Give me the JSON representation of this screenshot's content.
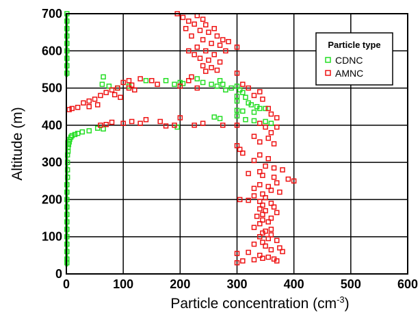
{
  "chart_data": {
    "type": "scatter",
    "xlabel": "Particle concentration (cm",
    "xlabel_sup": "-3",
    "xlabel_end": ")",
    "ylabel": "Altitude (m)",
    "xlim": [
      0,
      600
    ],
    "ylim": [
      0,
      700
    ],
    "xticks": [
      0,
      100,
      200,
      300,
      400,
      500,
      600
    ],
    "yticks": [
      0,
      100,
      200,
      300,
      400,
      500,
      600,
      700
    ],
    "grid": true,
    "legend": {
      "title": "Particle type",
      "position": "top-right"
    },
    "series": [
      {
        "name": "CDNC",
        "color": "#22dd22",
        "x_near_zero": 0.5,
        "values": [
          [
            65,
            530
          ],
          [
            63,
            510
          ],
          [
            75,
            505
          ],
          [
            90,
            500
          ],
          [
            110,
            505
          ],
          [
            140,
            520
          ],
          [
            175,
            520
          ],
          [
            190,
            510
          ],
          [
            200,
            515
          ],
          [
            205,
            512
          ],
          [
            230,
            525
          ],
          [
            240,
            515
          ],
          [
            255,
            510
          ],
          [
            265,
            505
          ],
          [
            270,
            520
          ],
          [
            275,
            510
          ],
          [
            280,
            495
          ],
          [
            290,
            500
          ],
          [
            300,
            505
          ],
          [
            305,
            495
          ],
          [
            310,
            488
          ],
          [
            300,
            478
          ],
          [
            315,
            475
          ],
          [
            300,
            465
          ],
          [
            320,
            460
          ],
          [
            325,
            455
          ],
          [
            335,
            450
          ],
          [
            340,
            445
          ],
          [
            300,
            440
          ],
          [
            310,
            438
          ],
          [
            330,
            435
          ],
          [
            350,
            445
          ],
          [
            300,
            425
          ],
          [
            260,
            422
          ],
          [
            270,
            418
          ],
          [
            315,
            415
          ],
          [
            330,
            412
          ],
          [
            350,
            410
          ],
          [
            360,
            405
          ],
          [
            195,
            395
          ],
          [
            65,
            390
          ],
          [
            55,
            392
          ],
          [
            40,
            385
          ],
          [
            28,
            382
          ],
          [
            20,
            378
          ],
          [
            15,
            375
          ],
          [
            10,
            372
          ],
          [
            8,
            368
          ],
          [
            6,
            362
          ],
          [
            5,
            355
          ],
          [
            4,
            348
          ],
          [
            3,
            340
          ],
          [
            3,
            330
          ],
          [
            2,
            320
          ],
          [
            2,
            300
          ],
          [
            2,
            280
          ],
          [
            2,
            260
          ],
          [
            1,
            240
          ],
          [
            1,
            220
          ],
          [
            1,
            200
          ],
          [
            1,
            180
          ],
          [
            1,
            160
          ],
          [
            1,
            140
          ],
          [
            1,
            120
          ],
          [
            1,
            100
          ],
          [
            1,
            80
          ],
          [
            1,
            60
          ],
          [
            1,
            40
          ],
          [
            1,
            30
          ],
          [
            1,
            540
          ],
          [
            1,
            560
          ],
          [
            1,
            580
          ],
          [
            1,
            600
          ],
          [
            1,
            620
          ],
          [
            1,
            640
          ],
          [
            1,
            660
          ],
          [
            1,
            680
          ],
          [
            1,
            700
          ]
        ]
      },
      {
        "name": "AMNC",
        "color": "#ee1111",
        "values": [
          [
            195,
            700
          ],
          [
            205,
            690
          ],
          [
            230,
            695
          ],
          [
            240,
            685
          ],
          [
            215,
            680
          ],
          [
            225,
            672
          ],
          [
            245,
            670
          ],
          [
            260,
            660
          ],
          [
            210,
            660
          ],
          [
            235,
            655
          ],
          [
            250,
            650
          ],
          [
            265,
            640
          ],
          [
            275,
            630
          ],
          [
            220,
            640
          ],
          [
            240,
            630
          ],
          [
            255,
            620
          ],
          [
            270,
            615
          ],
          [
            285,
            625
          ],
          [
            300,
            610
          ],
          [
            230,
            610
          ],
          [
            215,
            600
          ],
          [
            245,
            600
          ],
          [
            260,
            590
          ],
          [
            280,
            600
          ],
          [
            225,
            590
          ],
          [
            235,
            580
          ],
          [
            250,
            575
          ],
          [
            270,
            570
          ],
          [
            240,
            560
          ],
          [
            255,
            555
          ],
          [
            265,
            548
          ],
          [
            300,
            540
          ],
          [
            245,
            545
          ],
          [
            220,
            530
          ],
          [
            130,
            525
          ],
          [
            110,
            520
          ],
          [
            100,
            515
          ],
          [
            115,
            508
          ],
          [
            90,
            500
          ],
          [
            80,
            495
          ],
          [
            70,
            488
          ],
          [
            85,
            482
          ],
          [
            60,
            480
          ],
          [
            95,
            475
          ],
          [
            50,
            470
          ],
          [
            40,
            465
          ],
          [
            30,
            460
          ],
          [
            55,
            455
          ],
          [
            40,
            450
          ],
          [
            20,
            448
          ],
          [
            10,
            445
          ],
          [
            5,
            442
          ],
          [
            110,
            500
          ],
          [
            120,
            495
          ],
          [
            150,
            520
          ],
          [
            160,
            510
          ],
          [
            215,
            520
          ],
          [
            200,
            505
          ],
          [
            230,
            500
          ],
          [
            310,
            510
          ],
          [
            320,
            500
          ],
          [
            340,
            490
          ],
          [
            345,
            470
          ],
          [
            330,
            480
          ],
          [
            355,
            445
          ],
          [
            360,
            430
          ],
          [
            370,
            420
          ],
          [
            340,
            405
          ],
          [
            350,
            395
          ],
          [
            370,
            395
          ],
          [
            360,
            380
          ],
          [
            330,
            370
          ],
          [
            355,
            365
          ],
          [
            340,
            355
          ],
          [
            365,
            350
          ],
          [
            300,
            345
          ],
          [
            305,
            335
          ],
          [
            310,
            325
          ],
          [
            340,
            320
          ],
          [
            355,
            310
          ],
          [
            330,
            305
          ],
          [
            350,
            290
          ],
          [
            365,
            285
          ],
          [
            380,
            280
          ],
          [
            340,
            275
          ],
          [
            320,
            270
          ],
          [
            345,
            265
          ],
          [
            365,
            260
          ],
          [
            390,
            255
          ],
          [
            400,
            250
          ],
          [
            370,
            245
          ],
          [
            340,
            240
          ],
          [
            355,
            235
          ],
          [
            330,
            230
          ],
          [
            360,
            225
          ],
          [
            375,
            220
          ],
          [
            345,
            215
          ],
          [
            330,
            210
          ],
          [
            350,
            205
          ],
          [
            305,
            200
          ],
          [
            320,
            198
          ],
          [
            340,
            195
          ],
          [
            360,
            190
          ],
          [
            345,
            185
          ],
          [
            365,
            180
          ],
          [
            340,
            175
          ],
          [
            350,
            170
          ],
          [
            370,
            165
          ],
          [
            345,
            160
          ],
          [
            335,
            155
          ],
          [
            360,
            150
          ],
          [
            345,
            145
          ],
          [
            355,
            140
          ],
          [
            340,
            135
          ],
          [
            330,
            125
          ],
          [
            360,
            120
          ],
          [
            350,
            115
          ],
          [
            345,
            110
          ],
          [
            360,
            105
          ],
          [
            340,
            100
          ],
          [
            355,
            95
          ],
          [
            370,
            90
          ],
          [
            345,
            85
          ],
          [
            330,
            80
          ],
          [
            350,
            75
          ],
          [
            375,
            70
          ],
          [
            360,
            65
          ],
          [
            380,
            60
          ],
          [
            300,
            55
          ],
          [
            320,
            58
          ],
          [
            340,
            50
          ],
          [
            355,
            45
          ],
          [
            365,
            40
          ],
          [
            330,
            38
          ],
          [
            310,
            35
          ],
          [
            300,
            30
          ],
          [
            345,
            42
          ],
          [
            370,
            35
          ],
          [
            200,
            420
          ],
          [
            190,
            400
          ],
          [
            175,
            398
          ],
          [
            130,
            405
          ],
          [
            115,
            410
          ],
          [
            100,
            405
          ],
          [
            80,
            408
          ],
          [
            140,
            415
          ],
          [
            165,
            410
          ],
          [
            225,
            400
          ],
          [
            240,
            405
          ],
          [
            275,
            400
          ],
          [
            300,
            400
          ],
          [
            60,
            400
          ],
          [
            70,
            402
          ]
        ]
      }
    ]
  }
}
